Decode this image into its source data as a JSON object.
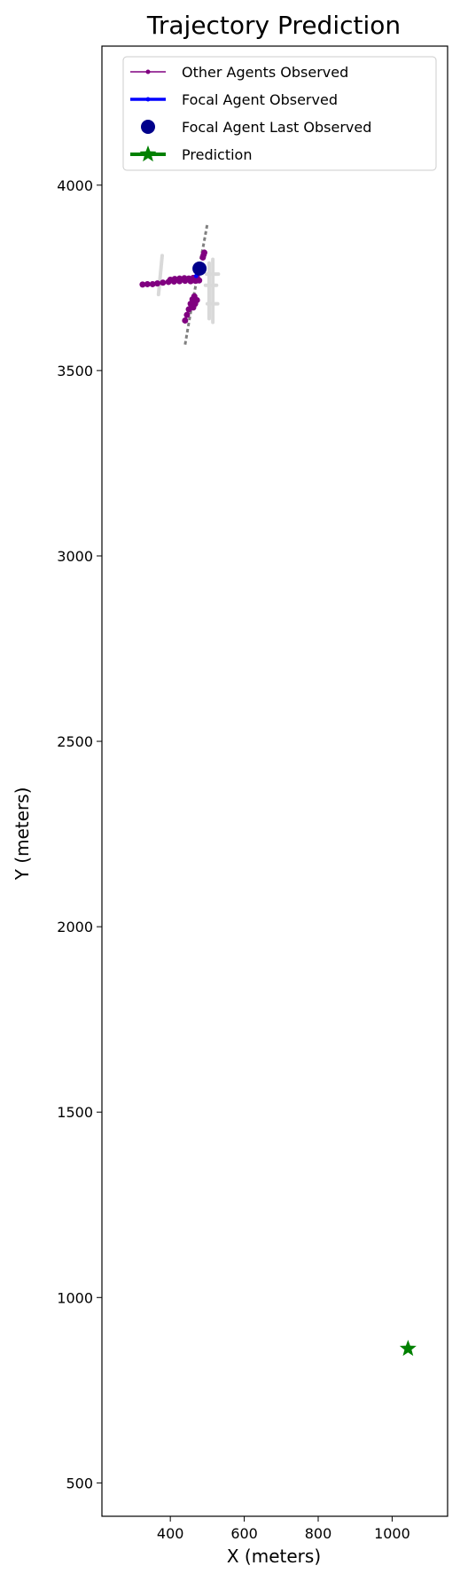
{
  "chart_data": {
    "type": "scatter",
    "title": "Trajectory Prediction",
    "xlabel": "X (meters)",
    "ylabel": "Y (meters)",
    "xlim": [
      215,
      1150
    ],
    "ylim": [
      410,
      4375
    ],
    "xticks": [
      400,
      600,
      800,
      1000
    ],
    "yticks": [
      500,
      1000,
      1500,
      2000,
      2500,
      3000,
      3500,
      4000
    ],
    "grid": false,
    "legend_position": "upper-right",
    "legend": [
      {
        "label": "Other Agents Observed",
        "color": "#800080",
        "marker": "line-dot"
      },
      {
        "label": "Focal Agent Observed",
        "color": "#0000ff",
        "marker": "line-dot-thick"
      },
      {
        "label": "Focal Agent Last Observed",
        "color": "#00008b",
        "marker": "circle"
      },
      {
        "label": "Prediction",
        "color": "#008000",
        "marker": "star"
      }
    ],
    "map_lanes": {
      "color": "#d9d9d9",
      "segments": [
        {
          "x": [
            368,
            378
          ],
          "y": [
            3705,
            3810
          ]
        },
        {
          "x": [
            505,
            505
          ],
          "y": [
            3640,
            3790
          ]
        },
        {
          "x": [
            515,
            515
          ],
          "y": [
            3630,
            3800
          ]
        },
        {
          "x": [
            498,
            530
          ],
          "y": [
            3760,
            3760
          ]
        },
        {
          "x": [
            495,
            525
          ],
          "y": [
            3730,
            3730
          ]
        },
        {
          "x": [
            500,
            528
          ],
          "y": [
            3680,
            3680
          ]
        }
      ]
    },
    "trajectory_lane": {
      "color": "#808080",
      "style": "dashed",
      "x": [
        440,
        452,
        465,
        478,
        490,
        500
      ],
      "y": [
        3570,
        3640,
        3710,
        3780,
        3840,
        3895
      ]
    },
    "series": [
      {
        "name": "Other Agents Observed",
        "color": "#800080",
        "tracks": [
          {
            "x": [
              325,
              338,
              352,
              365,
              380,
              395,
              410,
              425,
              440,
              455,
              468,
              478
            ],
            "y": [
              3732,
              3733,
              3733,
              3735,
              3737,
              3739,
              3740,
              3741,
              3742,
              3741,
              3742,
              3743
            ]
          },
          {
            "x": [
              400,
              412,
              425,
              438,
              450,
              462,
              472
            ],
            "y": [
              3745,
              3747,
              3748,
              3749,
              3748,
              3750,
              3752
            ]
          },
          {
            "x": [
              440,
              445,
              450,
              455,
              460,
              465
            ],
            "y": [
              3635,
              3650,
              3665,
              3680,
              3692,
              3700
            ]
          },
          {
            "x": [
              488,
              490,
              492
            ],
            "y": [
              3805,
              3812,
              3818
            ]
          },
          {
            "x": [
              462,
              467,
              472
            ],
            "y": [
              3670,
              3680,
              3690
            ]
          }
        ]
      },
      {
        "name": "Focal Agent Observed",
        "color": "#0000ff",
        "x": [
          470,
          473,
          476,
          479
        ],
        "y": [
          3755,
          3762,
          3768,
          3775
        ]
      },
      {
        "name": "Focal Agent Last Observed",
        "color": "#00008b",
        "x": [
          479
        ],
        "y": [
          3775
        ]
      },
      {
        "name": "Prediction",
        "color": "#008000",
        "x": [
          1043
        ],
        "y": [
          862
        ]
      }
    ]
  }
}
